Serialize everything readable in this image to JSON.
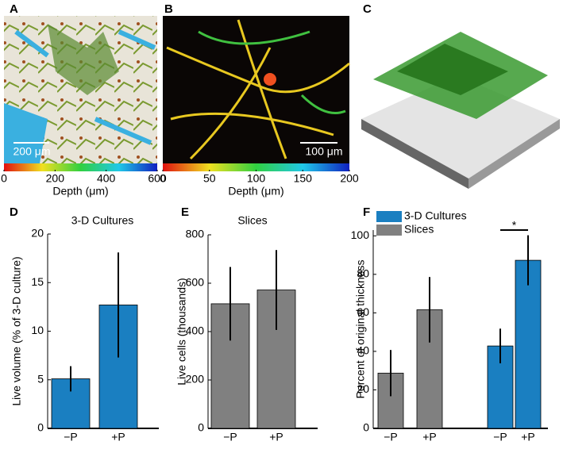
{
  "panels": [
    "A",
    "B",
    "C",
    "D",
    "E",
    "F"
  ],
  "images": [
    {
      "scale_bar": "200 μm",
      "colorbar": {
        "lim": [
          0,
          600
        ],
        "ticks": [
          0,
          200,
          400,
          600
        ],
        "label": "Depth (μm)"
      }
    },
    {
      "scale_bar": "100 μm",
      "colorbar": {
        "lim": [
          0,
          200
        ],
        "ticks": [
          0,
          50,
          100,
          150,
          200
        ],
        "label": "Depth (μm)"
      }
    }
  ],
  "chart_data": [
    {
      "type": "bar",
      "title": "3-D Cultures",
      "y_label": "Live volume (% of 3-D culture)",
      "categories": [
        "−P",
        "+P"
      ],
      "values": [
        5.1,
        12.7
      ],
      "errors": [
        1.3,
        5.4
      ],
      "color": "#1a7fc1",
      "ylim": [
        0,
        20
      ],
      "yticks": [
        0,
        5,
        10,
        15,
        20
      ]
    },
    {
      "type": "bar",
      "title": "Slices",
      "y_label": "Live cells (thousands)",
      "categories": [
        "−P",
        "+P"
      ],
      "values": [
        515,
        572
      ],
      "errors": [
        152,
        165
      ],
      "color": "#808080",
      "ylim": [
        0,
        800
      ],
      "yticks": [
        0,
        200,
        400,
        600,
        800
      ]
    },
    {
      "type": "bar",
      "y_label": "Percent of original thickness",
      "categories": [
        "−P",
        "+P",
        "−P",
        "+P"
      ],
      "series": [
        {
          "name": "3-D Cultures",
          "color": "#1a7fc1",
          "values": [
            null,
            null,
            42.8,
            87.3
          ],
          "errors": [
            null,
            null,
            9,
            13
          ]
        },
        {
          "name": "Slices",
          "color": "#808080",
          "values": [
            28.7,
            61.6,
            null,
            null
          ],
          "errors": [
            12,
            17,
            null,
            null
          ]
        }
      ],
      "annotation": "*",
      "legend": "upper-left",
      "ylim": [
        0,
        103
      ],
      "yticks": [
        0,
        20,
        40,
        60,
        80,
        100
      ]
    }
  ]
}
